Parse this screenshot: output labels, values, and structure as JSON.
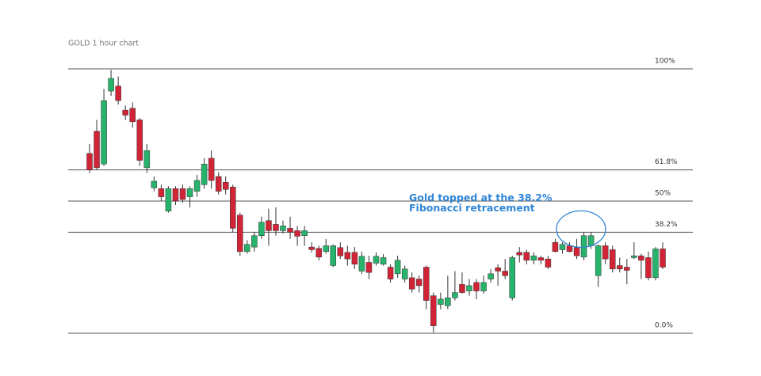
{
  "chart_data": {
    "type": "candlestick",
    "title": "GOLD 1 hour chart",
    "annotation": "Gold topped at the 38.2% Fibonacci retracement",
    "up_color": "#27b36b",
    "down_color": "#d12436",
    "annotation_color": "#2f86d6",
    "ylim": [
      0,
      100
    ],
    "yticks": [
      {
        "value": 100,
        "label": "100%"
      },
      {
        "value": 61.8,
        "label": "61.8%"
      },
      {
        "value": 50,
        "label": "50%"
      },
      {
        "value": 38.2,
        "label": "38.2%"
      },
      {
        "value": 0,
        "label": "0.0%"
      }
    ],
    "candles": [
      [
        68.0,
        71.6,
        60.6,
        61.8
      ],
      [
        76.4,
        80.7,
        61.8,
        62.6
      ],
      [
        64.0,
        92.4,
        63.3,
        88.0
      ],
      [
        91.6,
        99.6,
        89.8,
        96.4
      ],
      [
        93.5,
        97.1,
        86.5,
        88.0
      ],
      [
        84.4,
        86.2,
        80.7,
        82.5
      ],
      [
        85.1,
        87.3,
        77.8,
        80.0
      ],
      [
        80.7,
        81.4,
        63.3,
        65.4
      ],
      [
        62.6,
        71.6,
        60.6,
        69.1
      ],
      [
        55.0,
        59.3,
        53.7,
        57.5
      ],
      [
        54.7,
        56.2,
        50.0,
        51.6
      ],
      [
        46.2,
        55.6,
        45.6,
        54.7
      ],
      [
        54.7,
        55.6,
        48.5,
        50.0
      ],
      [
        54.7,
        56.2,
        49.4,
        50.6
      ],
      [
        51.6,
        55.6,
        47.6,
        54.7
      ],
      [
        53.7,
        59.9,
        51.6,
        57.8
      ],
      [
        56.2,
        66.2,
        54.7,
        64.0
      ],
      [
        66.2,
        69.1,
        54.7,
        57.8
      ],
      [
        59.3,
        60.9,
        52.5,
        53.7
      ],
      [
        57.1,
        59.3,
        52.5,
        54.4
      ],
      [
        55.3,
        56.2,
        38.2,
        39.7
      ],
      [
        44.7,
        45.6,
        29.3,
        30.9
      ],
      [
        30.9,
        35.2,
        30.1,
        33.6
      ],
      [
        32.6,
        38.2,
        30.9,
        36.9
      ],
      [
        36.9,
        44.1,
        35.7,
        42.0
      ],
      [
        42.6,
        47.1,
        33.1,
        38.8
      ],
      [
        41.2,
        47.6,
        36.9,
        38.8
      ],
      [
        38.8,
        42.6,
        37.7,
        40.6
      ],
      [
        39.7,
        44.1,
        35.7,
        38.2
      ],
      [
        38.8,
        40.6,
        33.1,
        36.7
      ],
      [
        36.9,
        40.6,
        33.1,
        38.8
      ],
      [
        32.6,
        34.4,
        30.6,
        31.6
      ],
      [
        32.1,
        33.1,
        27.6,
        28.8
      ],
      [
        30.9,
        35.7,
        30.1,
        33.1
      ],
      [
        25.6,
        33.6,
        25.0,
        33.1
      ],
      [
        32.4,
        34.4,
        28.1,
        29.3
      ],
      [
        30.6,
        33.1,
        25.6,
        28.1
      ],
      [
        30.6,
        32.6,
        24.3,
        26.1
      ],
      [
        23.5,
        30.9,
        22.5,
        29.1
      ],
      [
        26.8,
        29.3,
        20.5,
        23.0
      ],
      [
        26.5,
        30.6,
        25.6,
        29.1
      ],
      [
        26.1,
        29.9,
        25.6,
        28.6
      ],
      [
        25.0,
        26.1,
        19.2,
        20.5
      ],
      [
        22.5,
        29.3,
        21.0,
        27.6
      ],
      [
        20.5,
        25.6,
        19.2,
        24.3
      ],
      [
        21.0,
        23.0,
        15.4,
        16.7
      ],
      [
        20.5,
        21.8,
        15.4,
        18.0
      ],
      [
        25.0,
        25.6,
        9.1,
        12.4
      ],
      [
        14.2,
        15.4,
        0.3,
        2.8
      ],
      [
        10.9,
        15.4,
        9.1,
        12.9
      ],
      [
        10.4,
        21.8,
        9.1,
        13.4
      ],
      [
        13.4,
        23.5,
        12.4,
        15.4
      ],
      [
        18.5,
        23.0,
        15.0,
        15.4
      ],
      [
        16.0,
        20.5,
        14.2,
        18.0
      ],
      [
        19.2,
        20.5,
        12.9,
        16.0
      ],
      [
        16.0,
        21.8,
        15.0,
        19.2
      ],
      [
        20.5,
        24.3,
        19.2,
        22.5
      ],
      [
        24.8,
        26.1,
        18.0,
        23.5
      ],
      [
        23.5,
        28.1,
        20.5,
        21.8
      ],
      [
        13.4,
        29.3,
        12.4,
        28.6
      ],
      [
        30.6,
        32.6,
        26.8,
        29.6
      ],
      [
        30.6,
        31.6,
        26.1,
        27.6
      ],
      [
        27.6,
        30.6,
        26.1,
        29.3
      ],
      [
        28.6,
        29.3,
        26.1,
        27.6
      ],
      [
        28.1,
        29.3,
        24.3,
        25.0
      ],
      [
        34.4,
        35.7,
        30.6,
        30.9
      ],
      [
        31.6,
        34.4,
        30.1,
        33.6
      ],
      [
        33.1,
        34.4,
        30.6,
        30.9
      ],
      [
        32.4,
        35.7,
        28.1,
        29.3
      ],
      [
        28.8,
        38.2,
        27.6,
        36.9
      ],
      [
        33.1,
        38.2,
        31.9,
        36.9
      ],
      [
        21.8,
        33.6,
        17.5,
        33.1
      ],
      [
        33.1,
        34.4,
        26.1,
        28.1
      ],
      [
        31.6,
        33.1,
        23.0,
        24.3
      ],
      [
        25.6,
        28.6,
        23.0,
        24.3
      ],
      [
        25.0,
        28.1,
        18.5,
        23.8
      ],
      [
        28.6,
        34.4,
        28.1,
        29.3
      ],
      [
        29.3,
        30.1,
        20.5,
        27.6
      ],
      [
        28.6,
        30.9,
        20.0,
        21.0
      ],
      [
        21.0,
        32.6,
        20.0,
        31.9
      ],
      [
        31.9,
        34.4,
        24.3,
        25.0
      ]
    ]
  }
}
